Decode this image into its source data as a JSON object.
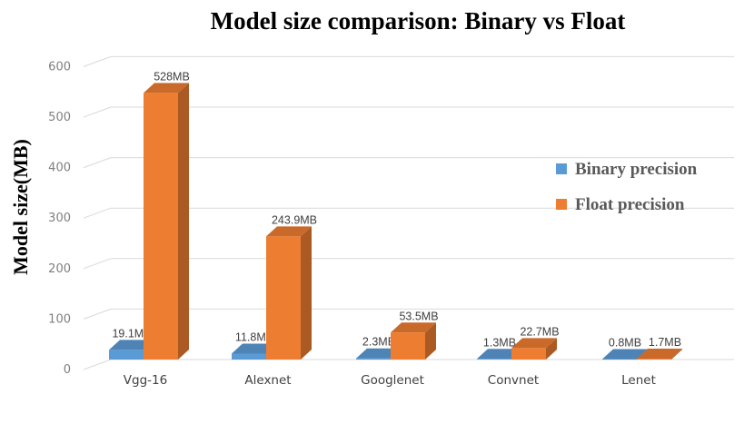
{
  "chart_data": {
    "type": "bar",
    "title": "Model size comparison: Binary vs Float",
    "ylabel": "Model size(MB)",
    "xlabel": "",
    "ylim": [
      0,
      600
    ],
    "yticks": [
      "0",
      "100",
      "200",
      "300",
      "400",
      "500",
      "600"
    ],
    "grid": true,
    "legend_position": "right",
    "style": "3d-column",
    "categories": [
      "Vgg-16",
      "Alexnet",
      "Googlenet",
      "Convnet",
      "Lenet"
    ],
    "series": [
      {
        "name": "Binary precision",
        "color": "#5B9BD5",
        "values": [
          19.1,
          11.8,
          2.3,
          1.3,
          0.8
        ],
        "labels": [
          "19.1MB",
          "11.8MB",
          "2.3MB",
          "1.3MB",
          "0.8MB"
        ]
      },
      {
        "name": "Float precision",
        "color": "#ED7D31",
        "values": [
          528,
          243.9,
          53.5,
          22.7,
          1.7
        ],
        "labels": [
          "528MB",
          "243.9MB",
          "53.5MB",
          "22.7MB",
          "1.7MB"
        ]
      }
    ]
  }
}
